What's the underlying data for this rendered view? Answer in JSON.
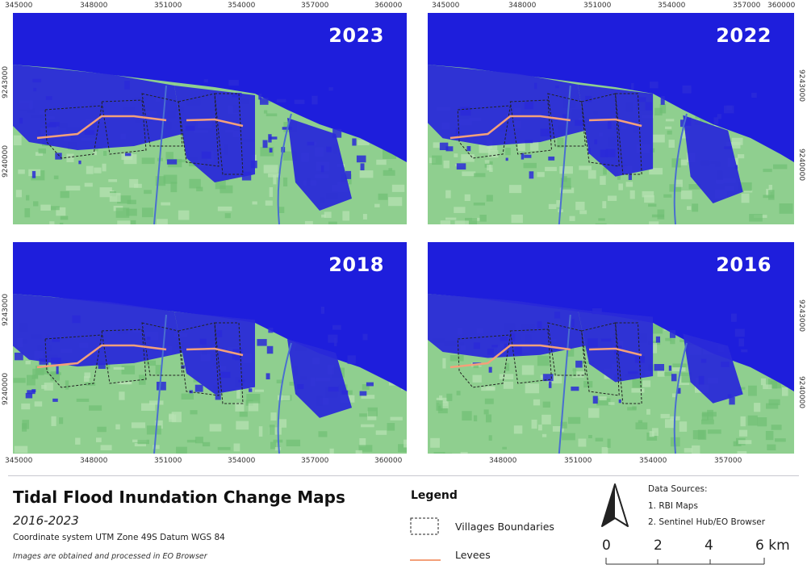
{
  "panels": [
    {
      "year": "2023"
    },
    {
      "year": "2022"
    },
    {
      "year": "2018"
    },
    {
      "year": "2016"
    }
  ],
  "axes": {
    "top_x_ticks": [
      "345000",
      "348000",
      "351000",
      "354000",
      "357000",
      "360000"
    ],
    "top_x_ticks_right": [
      "345000",
      "348000",
      "351000",
      "354000",
      "357000",
      "360000"
    ],
    "bottom_x_ticks_left": [
      "345000",
      "348000",
      "351000",
      "354000",
      "357000",
      "360000"
    ],
    "bottom_x_ticks_right": [
      "348000",
      "351000",
      "354000",
      "357000"
    ],
    "y_ticks_left": [
      "9243000",
      "9240000"
    ],
    "y_ticks_right": [
      "9243000",
      "9240000"
    ]
  },
  "title": "Tidal Flood Inundation Change Maps",
  "subtitle": "2016-2023",
  "coordinate_system": "Coordinate system UTM Zone 49S Datum WGS 84",
  "credit": "Images are obtained and processed in EO Browser",
  "legend": {
    "title": "Legend",
    "items": [
      {
        "label": "Villages Boundaries",
        "symbol": "dashed-box-icon"
      },
      {
        "label": "Levees",
        "symbol": "orange-line-icon",
        "color": "#f4a07a"
      }
    ]
  },
  "data_sources": {
    "title": "Data Sources:",
    "items": [
      "1. RBI Maps",
      "2. Sentinel Hub/EO Browser"
    ]
  },
  "scale_bar": {
    "labels": [
      "0",
      "2",
      "4",
      "6 km"
    ]
  },
  "colors": {
    "sea": "#1e1edc",
    "flood": "#2a2ad8",
    "land": "#8fcf8f",
    "levee": "#f4a07a"
  },
  "north_arrow": {
    "icon": "north-arrow-icon"
  }
}
